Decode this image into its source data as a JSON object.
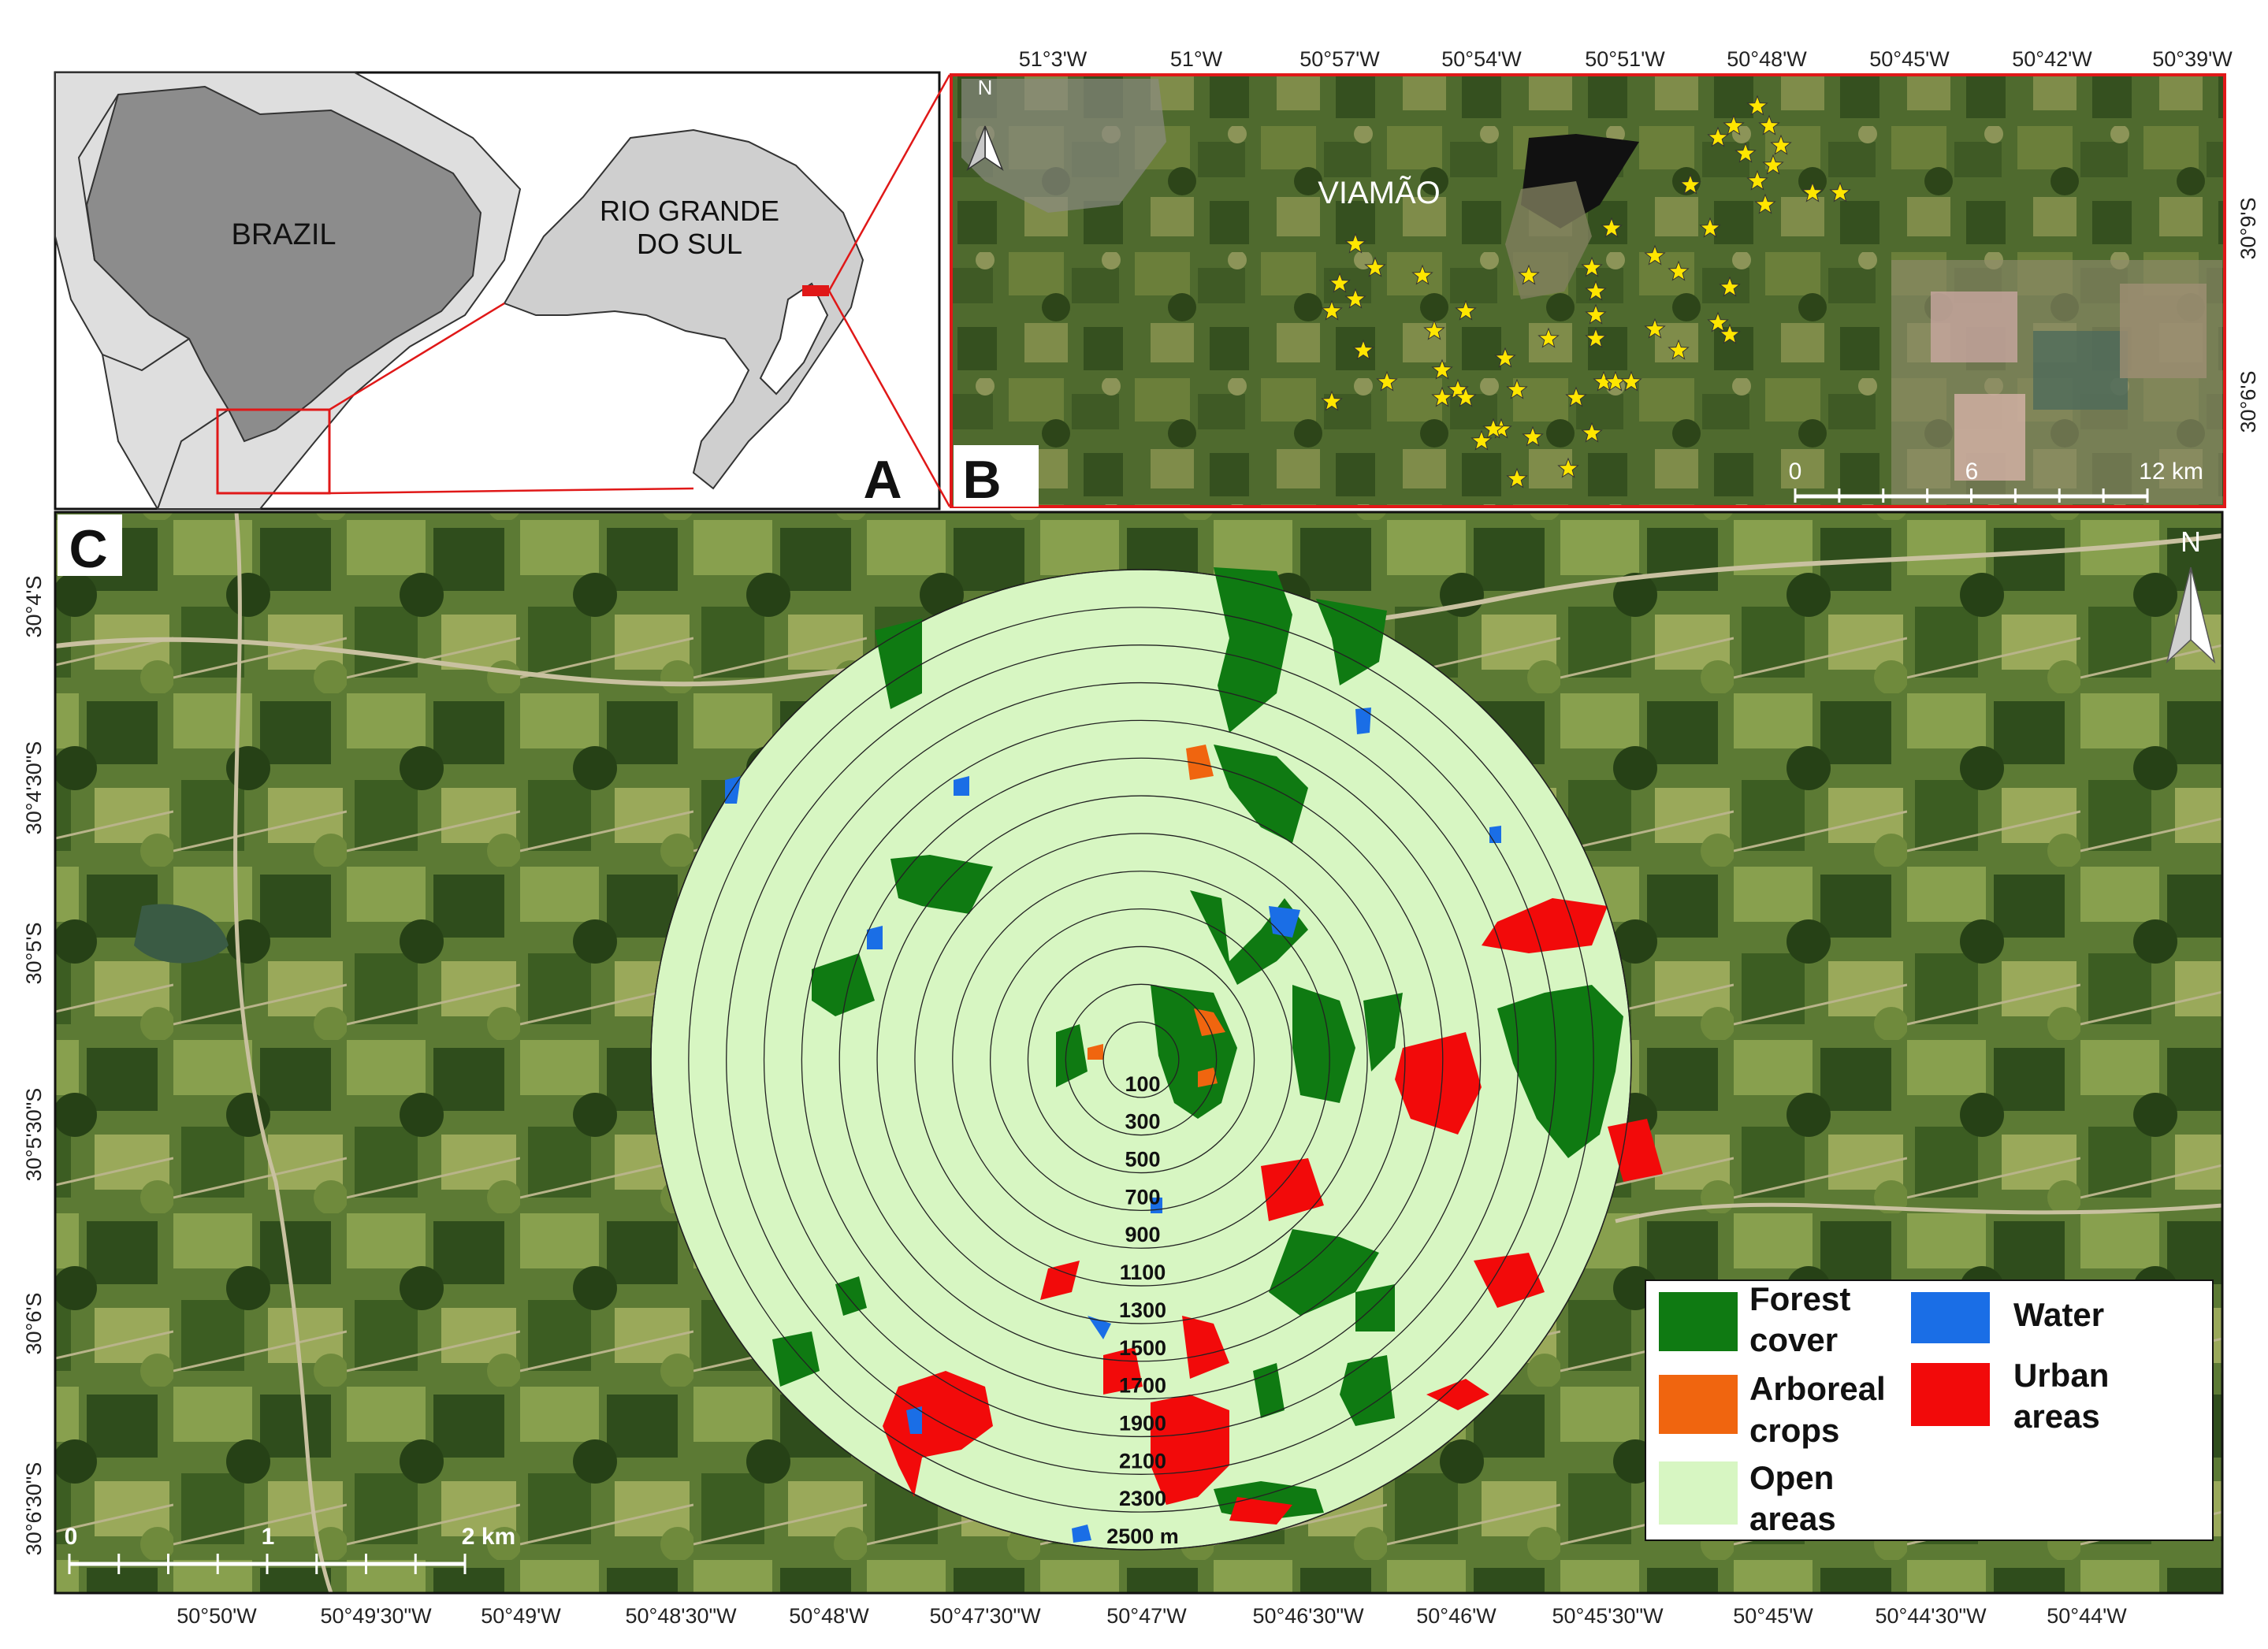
{
  "panel_a": {
    "letter": "A",
    "country_label": "BRAZIL",
    "state_label_line1": "RIO GRANDE",
    "state_label_line2": "DO SUL"
  },
  "panel_b": {
    "letter": "B",
    "city_label": "VIAMÃO",
    "north_label": "N",
    "top_ticks": [
      "51°3'W",
      "51°W",
      "50°57'W",
      "50°54'W",
      "50°51'W",
      "50°48'W",
      "50°45'W",
      "50°42'W",
      "50°39'W"
    ],
    "right_ticks": [
      "30°6'S",
      "30°9'S"
    ],
    "scale_labels": [
      "0",
      "6",
      "12 km"
    ]
  },
  "panel_c": {
    "letter": "C",
    "north_label": "N",
    "left_ticks": [
      "30°4'S",
      "30°4'30\"S",
      "30°5'S",
      "30°5'30\"S",
      "30°6'S",
      "30°6'30\"S"
    ],
    "bottom_ticks": [
      "50°50'W",
      "50°49'30\"W",
      "50°49'W",
      "50°48'30\"W",
      "50°48'W",
      "50°47'30\"W",
      "50°47'W",
      "50°46'30\"W",
      "50°46'W",
      "50°45'30\"W",
      "50°45'W",
      "50°44'30\"W",
      "50°44'W"
    ],
    "scale_labels": [
      "0",
      "1",
      "2 km"
    ],
    "ring_labels": [
      "100",
      "300",
      "500",
      "700",
      "900",
      "1100",
      "1300",
      "1500",
      "1700",
      "1900",
      "2100",
      "2300",
      "2500 m"
    ],
    "legend": [
      {
        "line1": "Forest",
        "line2": "cover",
        "color": "#0f7a12"
      },
      {
        "line1": "Water",
        "line2": "",
        "color": "#1a6ee6"
      },
      {
        "line1": "Arboreal",
        "line2": "crops",
        "color": "#f0650f"
      },
      {
        "line1": "Urban",
        "line2": "areas",
        "color": "#f20a0a"
      },
      {
        "line1": "Open",
        "line2": "areas",
        "color": "#d7f6c2"
      }
    ]
  },
  "colors": {
    "forest": "#0f7a12",
    "water": "#1a6ee6",
    "arboreal": "#f0650f",
    "urban": "#f20a0a",
    "open": "#d7f6c2",
    "frame_red": "#e01818"
  }
}
